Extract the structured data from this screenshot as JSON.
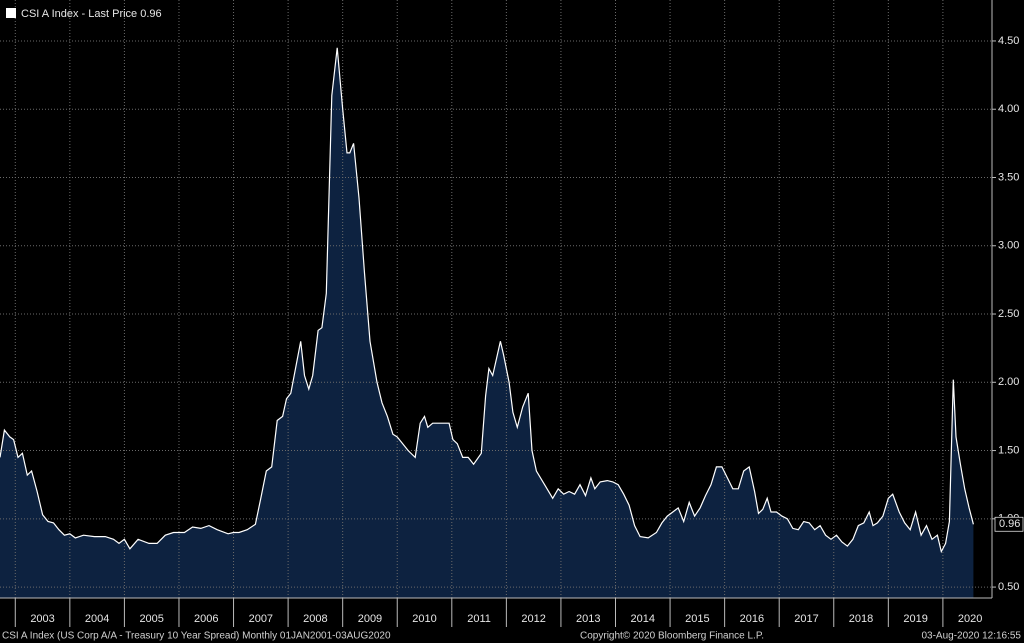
{
  "chart_data": {
    "type": "area",
    "series": [
      {
        "name": "CSI A Index - Last Price 0.96",
        "color": "#ffffff",
        "fill": "#0d2240",
        "x": [
          2002.72,
          2002.8,
          2002.9,
          2002.97,
          2003.05,
          2003.13,
          2003.22,
          2003.3,
          2003.4,
          2003.5,
          2003.6,
          2003.7,
          2003.8,
          2003.9,
          2004.0,
          2004.1,
          2004.25,
          2004.45,
          2004.65,
          2004.8,
          2004.9,
          2005.0,
          2005.1,
          2005.25,
          2005.45,
          2005.6,
          2005.75,
          2005.9,
          2006.1,
          2006.25,
          2006.4,
          2006.55,
          2006.7,
          2006.9,
          2007.0,
          2007.1,
          2007.25,
          2007.4,
          2007.5,
          2007.6,
          2007.7,
          2007.8,
          2007.9,
          2007.97,
          2008.05,
          2008.23,
          2008.3,
          2008.38,
          2008.45,
          2008.55,
          2008.62,
          2008.7,
          2008.8,
          2008.9,
          2009.0,
          2009.08,
          2009.13,
          2009.2,
          2009.3,
          2009.4,
          2009.5,
          2009.63,
          2009.72,
          2009.82,
          2009.92,
          2010.0,
          2010.1,
          2010.2,
          2010.33,
          2010.42,
          2010.5,
          2010.56,
          2010.65,
          2010.8,
          2010.95,
          2011.02,
          2011.1,
          2011.2,
          2011.3,
          2011.4,
          2011.54,
          2011.62,
          2011.68,
          2011.75,
          2011.89,
          2011.95,
          2012.05,
          2012.12,
          2012.2,
          2012.3,
          2012.4,
          2012.47,
          2012.55,
          2012.7,
          2012.85,
          2012.95,
          2013.05,
          2013.15,
          2013.25,
          2013.35,
          2013.45,
          2013.55,
          2013.62,
          2013.72,
          2013.85,
          2013.95,
          2014.05,
          2014.15,
          2014.25,
          2014.35,
          2014.45,
          2014.6,
          2014.75,
          2014.85,
          2014.95,
          2015.05,
          2015.15,
          2015.25,
          2015.35,
          2015.45,
          2015.55,
          2015.65,
          2015.75,
          2015.85,
          2015.95,
          2016.05,
          2016.15,
          2016.25,
          2016.35,
          2016.45,
          2016.55,
          2016.62,
          2016.7,
          2016.78,
          2016.85,
          2016.95,
          2017.05,
          2017.15,
          2017.25,
          2017.35,
          2017.45,
          2017.55,
          2017.65,
          2017.75,
          2017.85,
          2017.95,
          2018.05,
          2018.15,
          2018.25,
          2018.35,
          2018.45,
          2018.55,
          2018.65,
          2018.72,
          2018.8,
          2018.9,
          2019.0,
          2019.08,
          2019.2,
          2019.3,
          2019.4,
          2019.5,
          2019.6,
          2019.7,
          2019.8,
          2019.9,
          2019.97,
          2020.05,
          2020.12,
          2020.19,
          2020.24,
          2020.32,
          2020.4,
          2020.48,
          2020.56
        ],
        "values": [
          1.45,
          1.65,
          1.6,
          1.58,
          1.45,
          1.48,
          1.32,
          1.35,
          1.2,
          1.03,
          0.98,
          0.97,
          0.92,
          0.88,
          0.89,
          0.86,
          0.88,
          0.87,
          0.87,
          0.85,
          0.82,
          0.85,
          0.78,
          0.85,
          0.82,
          0.82,
          0.88,
          0.9,
          0.9,
          0.94,
          0.93,
          0.95,
          0.92,
          0.89,
          0.9,
          0.9,
          0.92,
          0.96,
          1.15,
          1.35,
          1.38,
          1.72,
          1.75,
          1.88,
          1.92,
          2.3,
          2.05,
          1.95,
          2.05,
          2.38,
          2.4,
          2.65,
          4.1,
          4.45,
          4.0,
          3.68,
          3.68,
          3.75,
          3.35,
          2.8,
          2.3,
          2.0,
          1.85,
          1.75,
          1.62,
          1.6,
          1.55,
          1.5,
          1.45,
          1.7,
          1.75,
          1.67,
          1.7,
          1.7,
          1.7,
          1.58,
          1.55,
          1.45,
          1.45,
          1.4,
          1.48,
          1.9,
          2.1,
          2.05,
          2.3,
          2.2,
          2.0,
          1.78,
          1.67,
          1.82,
          1.92,
          1.5,
          1.35,
          1.25,
          1.15,
          1.22,
          1.18,
          1.2,
          1.18,
          1.25,
          1.17,
          1.3,
          1.22,
          1.27,
          1.28,
          1.27,
          1.25,
          1.18,
          1.1,
          0.95,
          0.87,
          0.86,
          0.9,
          0.97,
          1.02,
          1.05,
          1.08,
          0.98,
          1.12,
          1.02,
          1.08,
          1.17,
          1.25,
          1.38,
          1.38,
          1.3,
          1.22,
          1.22,
          1.35,
          1.38,
          1.2,
          1.04,
          1.07,
          1.15,
          1.05,
          1.05,
          1.02,
          1.0,
          0.93,
          0.92,
          0.98,
          0.97,
          0.92,
          0.95,
          0.88,
          0.85,
          0.88,
          0.83,
          0.8,
          0.85,
          0.95,
          0.97,
          1.05,
          0.95,
          0.97,
          1.02,
          1.15,
          1.18,
          1.05,
          0.97,
          0.92,
          1.05,
          0.88,
          0.95,
          0.85,
          0.88,
          0.76,
          0.82,
          0.98,
          2.02,
          1.6,
          1.4,
          1.22,
          1.08,
          0.96
        ]
      }
    ],
    "last_label": "0.96",
    "xlim": [
      2002.72,
      2020.9
    ],
    "ylim": [
      0.42,
      4.8
    ],
    "xgrid": [
      2003,
      2004,
      2005,
      2006,
      2007,
      2008,
      2009,
      2010,
      2011,
      2012,
      2013,
      2014,
      2015,
      2016,
      2017,
      2018,
      2019,
      2020
    ],
    "xticks": [
      {
        "value": 2003.5,
        "label": "2003"
      },
      {
        "value": 2004.5,
        "label": "2004"
      },
      {
        "value": 2005.5,
        "label": "2005"
      },
      {
        "value": 2006.5,
        "label": "2006"
      },
      {
        "value": 2007.5,
        "label": "2007"
      },
      {
        "value": 2008.5,
        "label": "2008"
      },
      {
        "value": 2009.5,
        "label": "2009"
      },
      {
        "value": 2010.5,
        "label": "2010"
      },
      {
        "value": 2011.5,
        "label": "2011"
      },
      {
        "value": 2012.5,
        "label": "2012"
      },
      {
        "value": 2013.5,
        "label": "2013"
      },
      {
        "value": 2014.5,
        "label": "2014"
      },
      {
        "value": 2015.5,
        "label": "2015"
      },
      {
        "value": 2016.5,
        "label": "2016"
      },
      {
        "value": 2017.5,
        "label": "2017"
      },
      {
        "value": 2018.5,
        "label": "2018"
      },
      {
        "value": 2019.5,
        "label": "2019"
      },
      {
        "value": 2020.5,
        "label": "2020"
      }
    ],
    "yticks": [
      {
        "value": 0.5,
        "label": "0.50"
      },
      {
        "value": 1.0,
        "label": "1.00"
      },
      {
        "value": 1.5,
        "label": "1.50"
      },
      {
        "value": 2.0,
        "label": "2.00"
      },
      {
        "value": 2.5,
        "label": "2.50"
      },
      {
        "value": 3.0,
        "label": "3.00"
      },
      {
        "value": 3.5,
        "label": "3.50"
      },
      {
        "value": 4.0,
        "label": "4.00"
      },
      {
        "value": 4.5,
        "label": "4.50"
      }
    ],
    "grid": true,
    "footer": [
      "CSI A Index (US Corp A/A - Treasury 10 Year Spread)  Monthly 01JAN2001-03AUG2020",
      "Copyright© 2020 Bloomberg Finance L.P.",
      "03-Aug-2020 12:16:55"
    ]
  }
}
